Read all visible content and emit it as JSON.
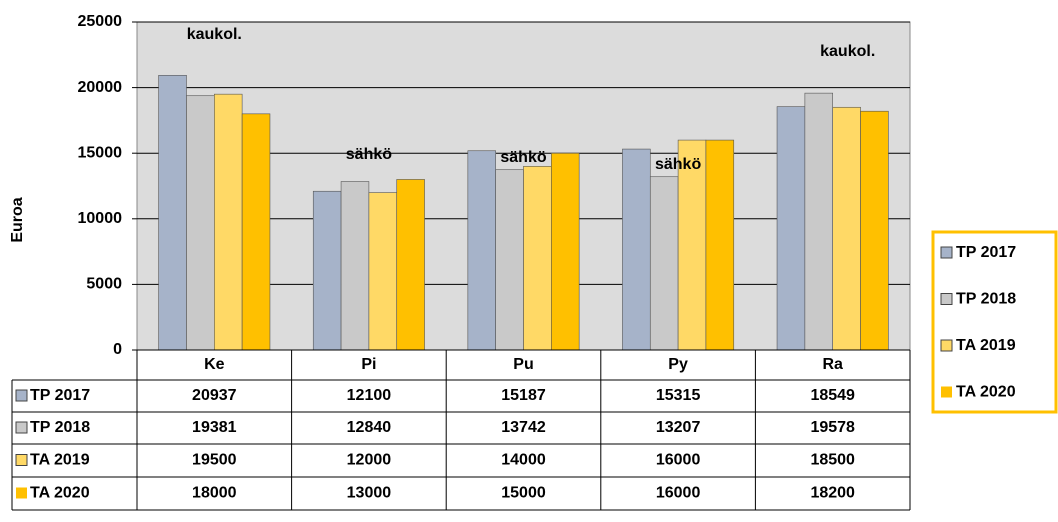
{
  "chart_data": {
    "type": "bar",
    "ylabel": "Euroa",
    "categories": [
      "Ke",
      "Pi",
      "Pu",
      "Py",
      "Ra"
    ],
    "series": [
      {
        "name": "TP 2017",
        "color": "#a6b3c9",
        "values": [
          20937,
          12100,
          15187,
          15315,
          18549
        ]
      },
      {
        "name": "TP 2018",
        "color": "#c9c9c9",
        "values": [
          19381,
          12840,
          13742,
          13207,
          19578
        ]
      },
      {
        "name": "TA 2019",
        "color": "#ffd966",
        "values": [
          19500,
          12000,
          14000,
          16000,
          18500
        ]
      },
      {
        "name": "TA 2020",
        "color": "#ffc000",
        "values": [
          18000,
          13000,
          15000,
          16000,
          18200
        ]
      }
    ],
    "annotations": [
      "kaukol.",
      "sähkö",
      "sähkö",
      "sähkö",
      "kaukol."
    ],
    "ylim": [
      0,
      25000
    ],
    "yticks": [
      0,
      5000,
      10000,
      15000,
      20000,
      25000
    ],
    "grid": true,
    "legend": "right"
  }
}
